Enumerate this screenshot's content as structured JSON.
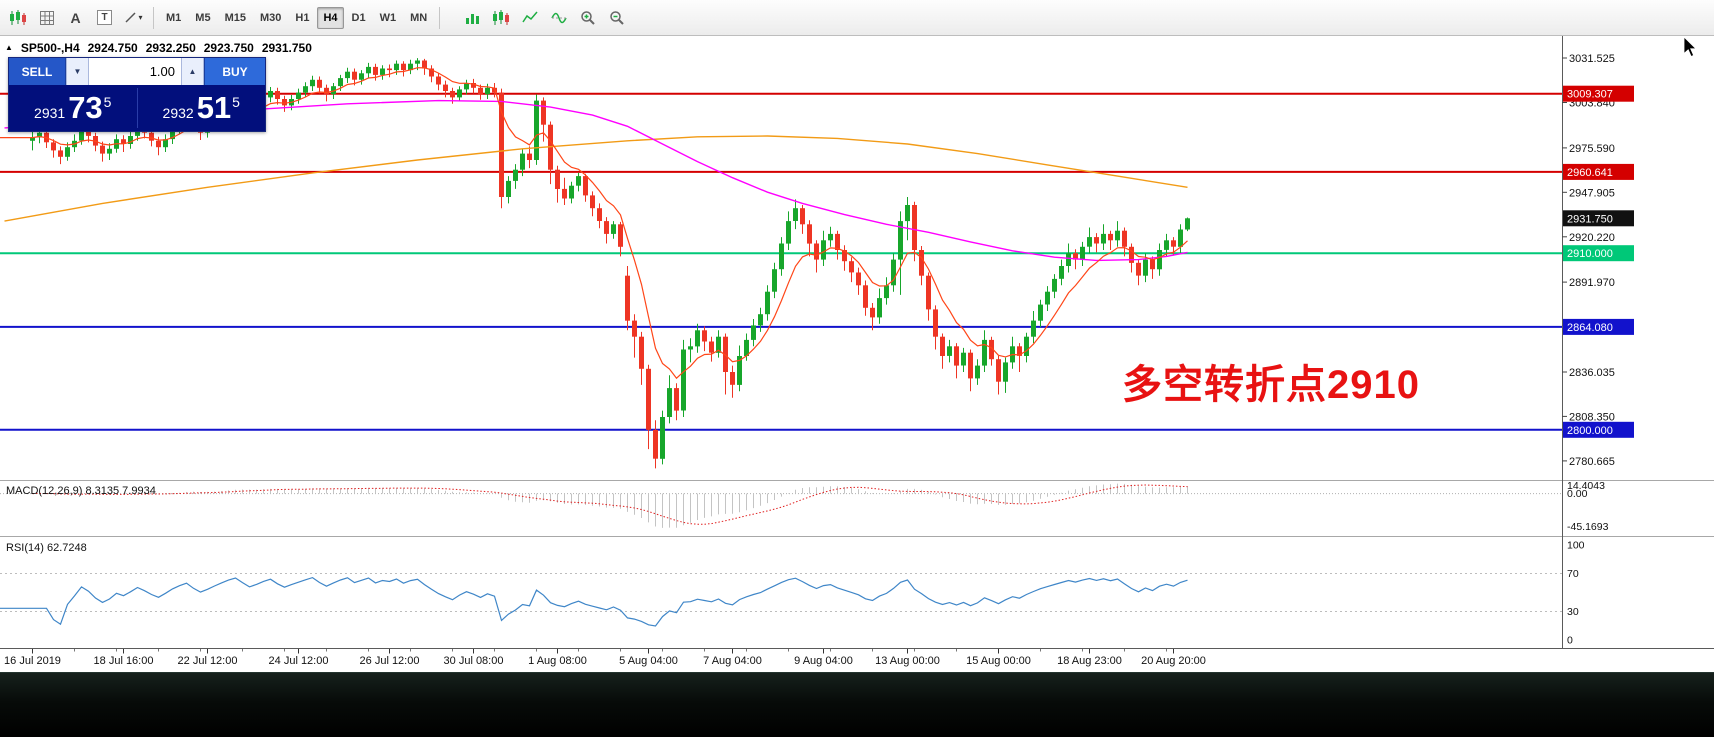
{
  "toolbar": {
    "left_icons": [
      {
        "name": "candlestick-chart-icon",
        "glyph": "candles"
      },
      {
        "name": "grid-icon",
        "glyph": "grid"
      },
      {
        "name": "text-label-icon",
        "glyph": "letter",
        "char": "A"
      },
      {
        "name": "text-tool-icon",
        "glyph": "boxed",
        "char": "T"
      },
      {
        "name": "drawing-tools-icon",
        "glyph": "linetool",
        "char": "▾"
      }
    ],
    "timeframes": [
      "M1",
      "M5",
      "M15",
      "M30",
      "H1",
      "H4",
      "D1",
      "W1",
      "MN"
    ],
    "active_timeframe": "H4",
    "right_icons": [
      {
        "name": "bar-chart-icon",
        "glyph": "bars"
      },
      {
        "name": "candlesticks-icon",
        "glyph": "candles"
      },
      {
        "name": "line-chart-icon",
        "glyph": "zigzag"
      },
      {
        "name": "indicators-icon",
        "glyph": "wave"
      },
      {
        "name": "zoom-in-icon",
        "glyph": "zoomin"
      },
      {
        "name": "zoom-out-icon",
        "glyph": "zoomout"
      }
    ]
  },
  "header": {
    "collapse_marker": "▲",
    "symbol_period": "SP500-,H4",
    "open": "2924.750",
    "high": "2932.250",
    "low": "2923.750",
    "close": "2931.750"
  },
  "trade_panel": {
    "sell_label": "SELL",
    "buy_label": "BUY",
    "volume": "1.00",
    "down_glyph": "▼",
    "up_glyph": "▲",
    "bid": {
      "prefix": "2931",
      "big": "73",
      "sup": "5"
    },
    "ask": {
      "prefix": "2932",
      "big": "51",
      "sup": "5"
    },
    "panel_color": "#020f7c",
    "sell_color": "#2557c8",
    "buy_color": "#2e6ada"
  },
  "annotation": {
    "text": "多空转折点2910",
    "color": "#e81212"
  },
  "price_scale": {
    "plain_labels": [
      "3031.525",
      "3003.840",
      "2975.590",
      "2947.905",
      "2920.220",
      "2891.970",
      "2836.035",
      "2808.350",
      "2780.665"
    ],
    "badges": [
      {
        "value": "3009.307",
        "color": "#d40000",
        "text_color": "#ffffff"
      },
      {
        "value": "2960.641",
        "color": "#d40000",
        "text_color": "#ffffff"
      },
      {
        "value": "2931.750",
        "color": "#111111",
        "text_color": "#ffffff"
      },
      {
        "value": "2910.000",
        "color": "#00c878",
        "text_color": "#ffffff"
      },
      {
        "value": "2864.080",
        "color": "#1212cc",
        "text_color": "#ffffff"
      },
      {
        "value": "2800.000",
        "color": "#1212cc",
        "text_color": "#ffffff"
      }
    ]
  },
  "time_axis": {
    "labels": [
      [
        0,
        "16 Jul 2019"
      ],
      [
        13,
        "18 Jul 16:00"
      ],
      [
        25,
        "22 Jul 12:00"
      ],
      [
        38,
        "24 Jul 12:00"
      ],
      [
        51,
        "26 Jul 12:00"
      ],
      [
        63,
        "30 Jul 08:00"
      ],
      [
        75,
        "1 Aug 08:00"
      ],
      [
        88,
        "5 Aug 04:00"
      ],
      [
        100,
        "7 Aug 04:00"
      ],
      [
        113,
        "9 Aug 04:00"
      ],
      [
        125,
        "13 Aug 00:00"
      ],
      [
        138,
        "15 Aug 00:00"
      ],
      [
        151,
        "18 Aug 23:00"
      ],
      [
        163,
        "20 Aug 20:00"
      ]
    ]
  },
  "indicators": {
    "macd": {
      "label": "MACD(12,26,9) 8.3135 7.9934",
      "axis_labels": [
        "14.4043",
        "0.00",
        "-45.1693"
      ],
      "fast": 12,
      "slow": 26,
      "signal": 9,
      "histogram_color": "#c4c4c4",
      "signal_color": "#e02020"
    },
    "rsi": {
      "label": "RSI(14) 62.7248",
      "axis_labels": [
        "100",
        "70",
        "30",
        "0"
      ],
      "period": 14,
      "levels": [
        70,
        30
      ],
      "line_color": "#3f86c8"
    }
  },
  "chart_data": {
    "type": "candlestick",
    "symbol": "SP500-",
    "period": "H4",
    "title": "SP500-,H4 2924.750 2932.250 2923.750 2931.750",
    "y_range": [
      2770,
      3044
    ],
    "up_color": "#17a62b",
    "down_color": "#ee3524",
    "last_price": 2931.75,
    "levels": [
      {
        "price": 3009.307,
        "color": "#d40000"
      },
      {
        "price": 2960.641,
        "color": "#d40000"
      },
      {
        "price": 2910.0,
        "color": "#00c878"
      },
      {
        "price": 2864.08,
        "color": "#1212cc"
      },
      {
        "price": 2800.0,
        "color": "#1212cc"
      }
    ],
    "ma_lines": [
      {
        "name": "ma-slow-orange",
        "color": "#f29b16",
        "points": [
          [
            -4,
            2930
          ],
          [
            10,
            2941
          ],
          [
            25,
            2951
          ],
          [
            40,
            2960
          ],
          [
            55,
            2968
          ],
          [
            70,
            2975
          ],
          [
            85,
            2980
          ],
          [
            95,
            2982.5
          ],
          [
            105,
            2983
          ],
          [
            115,
            2981.5
          ],
          [
            125,
            2978
          ],
          [
            135,
            2972
          ],
          [
            145,
            2965
          ],
          [
            155,
            2958
          ],
          [
            165,
            2951
          ]
        ]
      },
      {
        "name": "ma-medium-magenta",
        "color": "#ff00ff",
        "points": [
          [
            -4,
            2988
          ],
          [
            15,
            2993
          ],
          [
            30,
            2999
          ],
          [
            45,
            3003
          ],
          [
            58,
            3005
          ],
          [
            67,
            3004.5
          ],
          [
            74,
            3001
          ],
          [
            80,
            2996
          ],
          [
            85,
            2989
          ],
          [
            90,
            2978
          ],
          [
            95,
            2967
          ],
          [
            100,
            2957
          ],
          [
            105,
            2948
          ],
          [
            110,
            2941
          ],
          [
            116,
            2934
          ],
          [
            122,
            2928
          ],
          [
            128,
            2923
          ],
          [
            134,
            2917
          ],
          [
            140,
            2911.5
          ],
          [
            146,
            2907.5
          ],
          [
            152,
            2905.5
          ],
          [
            158,
            2906
          ],
          [
            162,
            2908
          ],
          [
            165,
            2910.5
          ]
        ]
      }
    ],
    "fast_ma": {
      "name": "ma-fast-red",
      "color": "#ff4618",
      "period": 8
    },
    "ohlc": [
      [
        2980,
        2986.5,
        2974,
        2982
      ],
      [
        2982,
        2988,
        2978.5,
        2985
      ],
      [
        2985,
        2987.5,
        2975.5,
        2979
      ],
      [
        2979,
        2981,
        2969.5,
        2974
      ],
      [
        2974,
        2976.5,
        2965.5,
        2970
      ],
      [
        2970,
        2979,
        2967.5,
        2976
      ],
      [
        2976,
        2984,
        2973,
        2980
      ],
      [
        2980,
        2989,
        2977.5,
        2986
      ],
      [
        2986,
        2990.5,
        2979,
        2983
      ],
      [
        2983,
        2985,
        2973.5,
        2977
      ],
      [
        2977,
        2979.5,
        2967,
        2972
      ],
      [
        2972,
        2978.5,
        2968,
        2975
      ],
      [
        2975,
        2984,
        2972.5,
        2981
      ],
      [
        2981,
        2983.5,
        2973,
        2978
      ],
      [
        2978,
        2986,
        2975,
        2983
      ],
      [
        2983,
        2991.5,
        2980,
        2989
      ],
      [
        2989,
        2992,
        2981.5,
        2985
      ],
      [
        2985,
        2987,
        2976.5,
        2980
      ],
      [
        2980,
        2982.5,
        2971,
        2976
      ],
      [
        2976,
        2984,
        2973,
        2981
      ],
      [
        2981,
        2989.5,
        2978,
        2987
      ],
      [
        2987,
        2994.5,
        2984,
        2992
      ],
      [
        2992,
        2999,
        2989,
        2996
      ],
      [
        2996,
        2998,
        2986,
        2990
      ],
      [
        2990,
        2992.5,
        2980.5,
        2985
      ],
      [
        2985,
        2991.5,
        2982,
        2989
      ],
      [
        2989,
        2997,
        2986,
        2994
      ],
      [
        2994,
        3002,
        2991,
        2999
      ],
      [
        2999,
        3006.5,
        2996,
        3004
      ],
      [
        3004,
        3010.5,
        3001,
        3008
      ],
      [
        3008,
        3010,
        2999.5,
        3003
      ],
      [
        3003,
        3005,
        2994.5,
        2998
      ],
      [
        2998,
        3004.5,
        2995,
        3002
      ],
      [
        3002,
        3009.5,
        2999,
        3007
      ],
      [
        3007,
        3013.5,
        3004,
        3011
      ],
      [
        3011,
        3013,
        3002.5,
        3006
      ],
      [
        3006,
        3008,
        2998,
        3002
      ],
      [
        3002,
        3008.5,
        2999,
        3006
      ],
      [
        3006,
        3012.5,
        3003,
        3010
      ],
      [
        3010,
        3016.5,
        3007,
        3014
      ],
      [
        3014,
        3020.5,
        3011,
        3018
      ],
      [
        3018,
        3020,
        3009.5,
        3013
      ],
      [
        3013,
        3015,
        3004.5,
        3009
      ],
      [
        3009,
        3016,
        3006,
        3014
      ],
      [
        3014,
        3021,
        3011,
        3019
      ],
      [
        3019,
        3025.5,
        3016,
        3023
      ],
      [
        3023,
        3025,
        3014.5,
        3018
      ],
      [
        3018,
        3024,
        3015,
        3022
      ],
      [
        3022,
        3028.5,
        3019,
        3026
      ],
      [
        3026,
        3028,
        3017.5,
        3021
      ],
      [
        3021,
        3027,
        3018,
        3025
      ],
      [
        3025,
        3027.5,
        3019.5,
        3024
      ],
      [
        3024,
        3030,
        3021,
        3028
      ],
      [
        3028,
        3029.5,
        3020,
        3024
      ],
      [
        3024,
        3030.5,
        3021.5,
        3028
      ],
      [
        3028,
        3031.5,
        3024,
        3030
      ],
      [
        3030,
        3031,
        3021,
        3025
      ],
      [
        3025,
        3027,
        3016.5,
        3020
      ],
      [
        3020,
        3022,
        3011.5,
        3015
      ],
      [
        3015,
        3017.5,
        3007,
        3011
      ],
      [
        3011,
        3013,
        3003,
        3007
      ],
      [
        3007,
        3014,
        3004.5,
        3012
      ],
      [
        3012,
        3018,
        3009,
        3016
      ],
      [
        3016,
        3018.5,
        3009.5,
        3013
      ],
      [
        3013,
        3015,
        3005.5,
        3009
      ],
      [
        3009,
        3015.5,
        3006,
        3013
      ],
      [
        3013,
        3016,
        3007,
        3010
      ],
      [
        3010,
        3012.5,
        2938,
        2945
      ],
      [
        2945,
        2958,
        2941,
        2955
      ],
      [
        2955,
        2965.5,
        2950,
        2962
      ],
      [
        2962,
        2975,
        2958,
        2972
      ],
      [
        2972,
        2976.5,
        2963,
        2968
      ],
      [
        2968,
        3008.8,
        2965,
        3005
      ],
      [
        3005,
        3007,
        2979.5,
        2990
      ],
      [
        2990,
        2992,
        2953,
        2962
      ],
      [
        2962,
        2964.5,
        2941.5,
        2950
      ],
      [
        2950,
        2957,
        2940,
        2944
      ],
      [
        2944,
        2954.5,
        2941,
        2952
      ],
      [
        2952,
        2960,
        2948.5,
        2958
      ],
      [
        2958,
        2959.5,
        2942,
        2946
      ],
      [
        2946,
        2948.5,
        2933,
        2938
      ],
      [
        2938,
        2941,
        2925.5,
        2930
      ],
      [
        2930,
        2932.5,
        2916,
        2922
      ],
      [
        2922,
        2930,
        2919,
        2928
      ],
      [
        2928,
        2929.5,
        2908,
        2914
      ],
      [
        2896,
        2902,
        2862,
        2868
      ],
      [
        2868,
        2872,
        2845,
        2858
      ],
      [
        2858,
        2861,
        2828,
        2838
      ],
      [
        2838,
        2840.5,
        2788,
        2800
      ],
      [
        2800,
        2806,
        2776,
        2782
      ],
      [
        2782,
        2812,
        2778.5,
        2808
      ],
      [
        2808,
        2834,
        2804,
        2826
      ],
      [
        2826,
        2829,
        2806,
        2812
      ],
      [
        2812,
        2856,
        2808,
        2850
      ],
      [
        2850,
        2857,
        2842,
        2852
      ],
      [
        2852,
        2866,
        2848,
        2862
      ],
      [
        2862,
        2864.5,
        2849,
        2855
      ],
      [
        2855,
        2858,
        2842.5,
        2848
      ],
      [
        2848,
        2862,
        2845,
        2858
      ],
      [
        2858,
        2860,
        2822,
        2836
      ],
      [
        2836,
        2840,
        2820,
        2828
      ],
      [
        2828,
        2852.5,
        2824,
        2846
      ],
      [
        2846,
        2860,
        2843,
        2856
      ],
      [
        2856,
        2869,
        2852,
        2865
      ],
      [
        2865,
        2876,
        2861,
        2872
      ],
      [
        2872,
        2890,
        2868,
        2886
      ],
      [
        2886,
        2904,
        2882,
        2900
      ],
      [
        2900,
        2920,
        2896,
        2916
      ],
      [
        2916,
        2936,
        2912,
        2930
      ],
      [
        2930,
        2943.5,
        2925,
        2938
      ],
      [
        2938,
        2940,
        2922,
        2928
      ],
      [
        2928,
        2930.5,
        2908,
        2916
      ],
      [
        2916,
        2918,
        2898,
        2906
      ],
      [
        2906,
        2924,
        2902,
        2918
      ],
      [
        2918,
        2926.5,
        2914,
        2922
      ],
      [
        2922,
        2924,
        2906,
        2912
      ],
      [
        2912,
        2915,
        2899,
        2905
      ],
      [
        2905,
        2907.5,
        2892,
        2898
      ],
      [
        2898,
        2901,
        2884,
        2890
      ],
      [
        2890,
        2893,
        2871,
        2876
      ],
      [
        2876,
        2879,
        2862,
        2870
      ],
      [
        2870,
        2888,
        2866,
        2882
      ],
      [
        2882,
        2895,
        2878,
        2890
      ],
      [
        2890,
        2910,
        2886,
        2906
      ],
      [
        2906,
        2936,
        2884,
        2930
      ],
      [
        2930,
        2945,
        2918,
        2940
      ],
      [
        2940,
        2942,
        2905,
        2912
      ],
      [
        2912,
        2914.5,
        2890,
        2896
      ],
      [
        2896,
        2898,
        2868,
        2875
      ],
      [
        2875,
        2877.5,
        2850,
        2858
      ],
      [
        2858,
        2860,
        2838,
        2846
      ],
      [
        2846,
        2856,
        2842,
        2852
      ],
      [
        2852,
        2854,
        2832,
        2840
      ],
      [
        2840,
        2851,
        2836,
        2848
      ],
      [
        2848,
        2850,
        2824,
        2832
      ],
      [
        2832,
        2844,
        2828,
        2840
      ],
      [
        2840,
        2862,
        2836,
        2856
      ],
      [
        2856,
        2858,
        2840,
        2844
      ],
      [
        2844,
        2846,
        2822,
        2830
      ],
      [
        2830,
        2845,
        2823,
        2842
      ],
      [
        2842,
        2858,
        2838,
        2852
      ],
      [
        2852,
        2854,
        2836,
        2846
      ],
      [
        2846,
        2860.5,
        2842,
        2858
      ],
      [
        2858,
        2874,
        2854,
        2868
      ],
      [
        2868,
        2881,
        2864,
        2878
      ],
      [
        2878,
        2889.5,
        2874,
        2886
      ],
      [
        2886,
        2897,
        2882,
        2894
      ],
      [
        2894,
        2906,
        2890,
        2902
      ],
      [
        2902,
        2916,
        2898,
        2910
      ],
      [
        2910,
        2912.5,
        2900,
        2906
      ],
      [
        2906,
        2917,
        2902,
        2914
      ],
      [
        2914,
        2926,
        2910,
        2920
      ],
      [
        2920,
        2922.5,
        2910.5,
        2916
      ],
      [
        2916,
        2928,
        2912,
        2922
      ],
      [
        2922,
        2924,
        2912,
        2918
      ],
      [
        2918,
        2930,
        2914,
        2924
      ],
      [
        2924,
        2926,
        2908,
        2914
      ],
      [
        2914,
        2916,
        2898,
        2904
      ],
      [
        2904,
        2906,
        2890,
        2896
      ],
      [
        2896,
        2910,
        2892,
        2906
      ],
      [
        2906,
        2908,
        2894,
        2900
      ],
      [
        2900,
        2916,
        2896,
        2912
      ],
      [
        2912,
        2922,
        2908,
        2918
      ],
      [
        2918,
        2920,
        2908.5,
        2914
      ],
      [
        2914,
        2928,
        2910,
        2924.75
      ],
      [
        2924.75,
        2932.25,
        2923.75,
        2931.75
      ]
    ]
  }
}
